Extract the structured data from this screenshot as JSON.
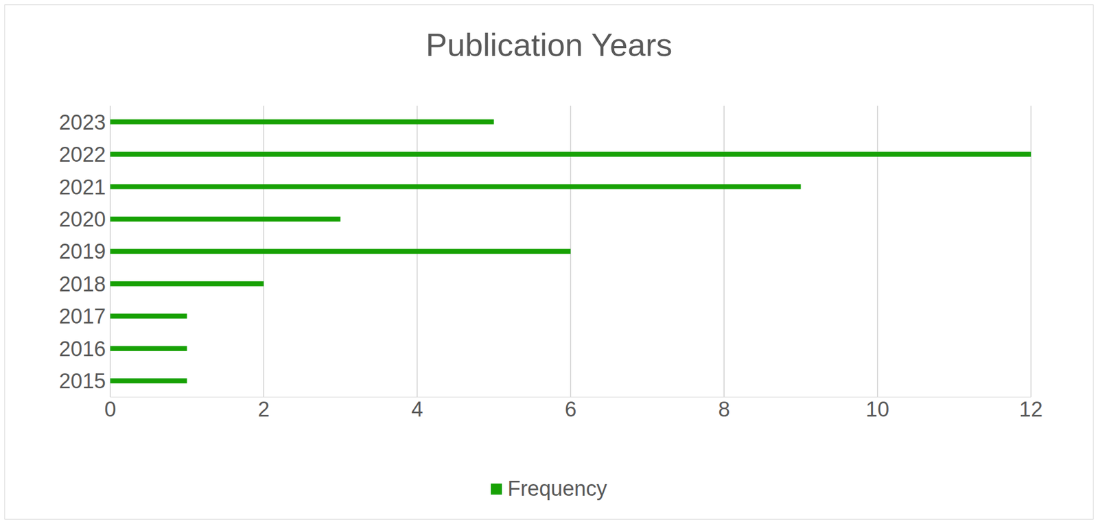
{
  "chart_data": {
    "type": "bar",
    "title": "Publication Years",
    "orientation": "horizontal",
    "categories": [
      "2015",
      "2016",
      "2017",
      "2018",
      "2019",
      "2020",
      "2021",
      "2022",
      "2023"
    ],
    "series": [
      {
        "name": "Frequency",
        "color": "#17a104",
        "values": [
          1,
          1,
          1,
          2,
          6,
          3,
          9,
          12,
          5
        ]
      }
    ],
    "xlim": [
      0,
      12
    ],
    "xticks": [
      0,
      2,
      4,
      6,
      8,
      10,
      12
    ],
    "grid": true,
    "legend": "bottom"
  }
}
